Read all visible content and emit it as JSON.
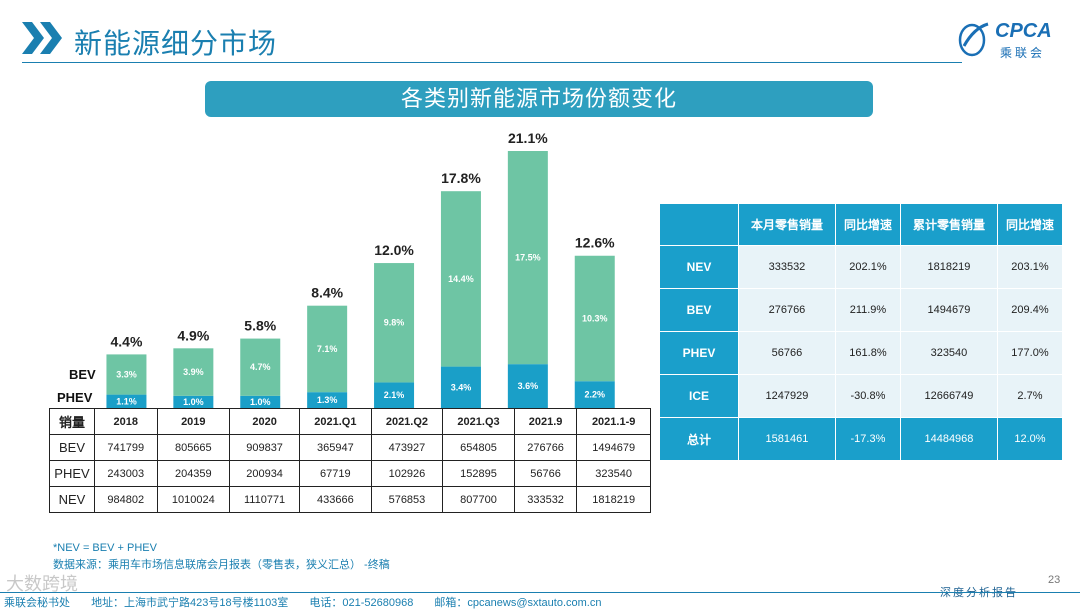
{
  "header": {
    "title": "新能源细分市场",
    "logo_text": "CPCA",
    "logo_sub": "乘联会"
  },
  "banner": {
    "title": "各类别新能源市场份额变化"
  },
  "chart_data": {
    "type": "bar",
    "stacked": true,
    "title": "各类别新能源市场份额变化",
    "categories": [
      "2018",
      "2019",
      "2020",
      "2021.Q1",
      "2021.Q2",
      "2021.Q3",
      "2021.9",
      "2021.1-9"
    ],
    "series": [
      {
        "name": "PHEV",
        "values": [
          1.1,
          1.0,
          1.0,
          1.3,
          2.1,
          3.4,
          3.6,
          2.2
        ],
        "labels": [
          "1.1%",
          "1.0%",
          "1.0%",
          "1.3%",
          "2.1%",
          "3.4%",
          "3.6%",
          "2.2%"
        ],
        "color": "#1a9fc8"
      },
      {
        "name": "BEV",
        "values": [
          3.3,
          3.9,
          4.7,
          7.1,
          9.8,
          14.4,
          17.5,
          10.3
        ],
        "labels": [
          "3.3%",
          "3.9%",
          "4.7%",
          "7.1%",
          "9.8%",
          "14.4%",
          "17.5%",
          "10.3%"
        ],
        "color": "#6ec5a4"
      }
    ],
    "totals": [
      4.4,
      4.9,
      5.8,
      8.4,
      12.0,
      17.8,
      21.1,
      12.6
    ],
    "total_labels": [
      "4.4%",
      "4.9%",
      "5.8%",
      "8.4%",
      "12.0%",
      "17.8%",
      "21.1%",
      "12.6%"
    ],
    "unit": "%",
    "ylim": [
      0,
      21.1
    ],
    "legend": [
      "BEV",
      "PHEV"
    ]
  },
  "sales_table": {
    "corner": "销量",
    "columns": [
      "2018",
      "2019",
      "2020",
      "2021.Q1",
      "2021.Q2",
      "2021.Q3",
      "2021.9",
      "2021.1-9"
    ],
    "rows": [
      {
        "label": "BEV",
        "values": [
          "741799",
          "805665",
          "909837",
          "365947",
          "473927",
          "654805",
          "276766",
          "1494679"
        ]
      },
      {
        "label": "PHEV",
        "values": [
          "243003",
          "204359",
          "200934",
          "67719",
          "102926",
          "152895",
          "56766",
          "323540"
        ]
      },
      {
        "label": "NEV",
        "values": [
          "984802",
          "1010024",
          "1110771",
          "433666",
          "576853",
          "807700",
          "333532",
          "1818219"
        ]
      }
    ]
  },
  "summary_table": {
    "headers": [
      "",
      "本月零售销量",
      "同比增速",
      "累计零售销量",
      "同比增速"
    ],
    "rows": [
      {
        "label": "NEV",
        "values": [
          "333532",
          "202.1%",
          "1818219",
          "203.1%"
        ]
      },
      {
        "label": "BEV",
        "values": [
          "276766",
          "211.9%",
          "1494679",
          "209.4%"
        ]
      },
      {
        "label": "PHEV",
        "values": [
          "56766",
          "161.8%",
          "323540",
          "177.0%"
        ]
      },
      {
        "label": "ICE",
        "values": [
          "1247929",
          "-30.8%",
          "12666749",
          "2.7%"
        ]
      }
    ],
    "total": {
      "label": "总计",
      "values": [
        "1581461",
        "-17.3%",
        "14484968",
        "12.0%"
      ]
    }
  },
  "notes": {
    "formula": "*NEV = BEV + PHEV",
    "source": "数据来源：乘用车市场信息联席会月报表（零售表，狭义汇总） -终稿"
  },
  "watermark": "大数跨境",
  "page_number": "23",
  "report_tag": "深度分析报告",
  "footer": {
    "org": "乘联会秘书处",
    "address": "地址：上海市武宁路423号18号楼1103室",
    "phone": "电话：021-52680968",
    "email": "邮箱：cpcanews@sxtauto.com.cn"
  },
  "colors": {
    "accent": "#1a9fcb",
    "bev": "#6ec5a4",
    "phev": "#1a9fc8",
    "title": "#1a7fb0"
  }
}
